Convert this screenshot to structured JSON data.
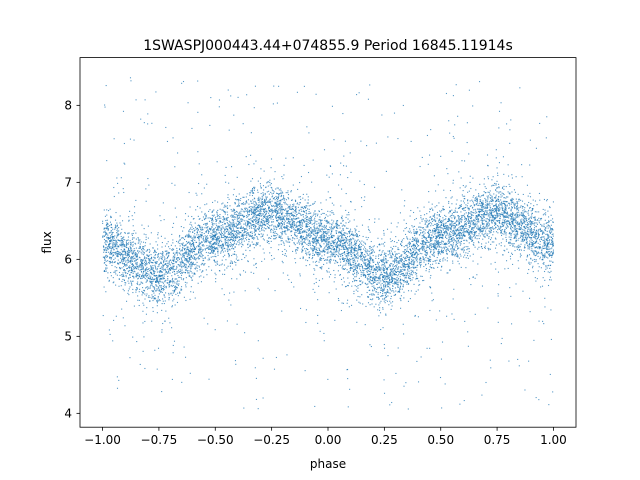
{
  "chart_data": {
    "type": "scatter",
    "title": "1SWASPJ000443.44+074855.9 Period 16845.11914s",
    "xlabel": "phase",
    "ylabel": "flux",
    "xlim": [
      -1.1,
      1.1
    ],
    "ylim": [
      3.82,
      8.62
    ],
    "x_ticks": [
      -1.0,
      -0.75,
      -0.5,
      -0.25,
      0.0,
      0.25,
      0.5,
      0.75,
      1.0
    ],
    "x_tick_labels": [
      "−1.00",
      "−0.75",
      "−0.50",
      "−0.25",
      "0.00",
      "0.25",
      "0.50",
      "0.75",
      "1.00"
    ],
    "y_ticks": [
      4,
      5,
      6,
      7,
      8
    ],
    "y_tick_labels": [
      "4",
      "5",
      "6",
      "7",
      "8"
    ],
    "grid": false,
    "marker_color": "#1f77b4",
    "series": [
      {
        "x_range": [
          -1.0,
          1.0
        ],
        "trend_phase": [
          -1.0,
          -0.75,
          -0.5,
          -0.25,
          0.0,
          0.25,
          0.5,
          0.75,
          1.0
        ],
        "trend_flux": [
          6.2,
          5.8,
          6.3,
          6.6,
          6.25,
          5.8,
          6.3,
          6.6,
          6.2
        ]
      }
    ]
  }
}
